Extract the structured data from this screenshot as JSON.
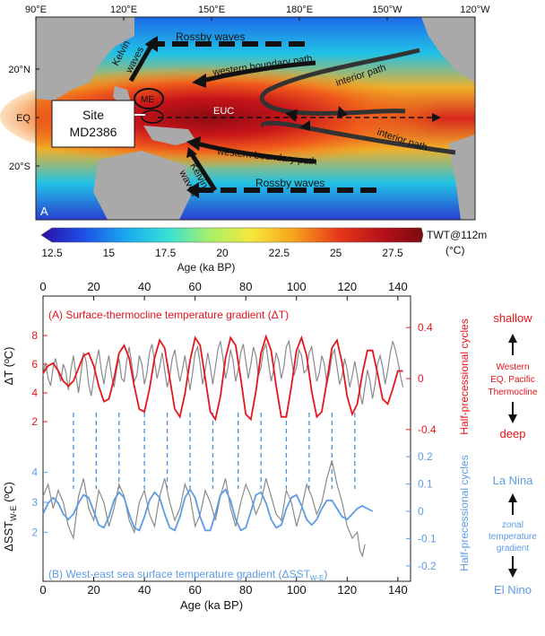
{
  "map": {
    "panel_label": "A",
    "lon_ticks": [
      "90°E",
      "120°E",
      "150°E",
      "180°E",
      "150°W",
      "120°W"
    ],
    "lat_ticks": [
      "20°N",
      "EQ",
      "20°S"
    ],
    "site_label_1": "Site",
    "site_label_2": "MD2386",
    "labels": {
      "rossby_top": "Rossby waves",
      "rossby_bottom": "Rossby waves",
      "kelvin_1": "Kelvin",
      "kelvin_2": "waves",
      "wbp_north": "western boundary path",
      "wbp_south": "western boundary path",
      "interior_north": "interior path",
      "interior_south": "interior path",
      "euc": "EUC",
      "me": "ME"
    }
  },
  "colorbar": {
    "ticks": [
      "12.5",
      "15",
      "17.5",
      "20",
      "22.5",
      "25",
      "27.5"
    ],
    "label": "TWT@112m",
    "unit": "(°C)",
    "colors": [
      "#2b0fa8",
      "#1e4fe6",
      "#19a7f0",
      "#35e0d8",
      "#a6f06a",
      "#f5e83a",
      "#f7a41d",
      "#e8361a",
      "#b21017",
      "#7a0b10"
    ]
  },
  "text": {
    "title_a": "(A) Surface-thermocline temperature gradient (ΔT)",
    "title_b": "(B) West-east sea surface temperature gradient (ΔSST",
    "title_b_sub": "W-E",
    "title_b_end": ")",
    "y_label_a": "ΔT (ºC)",
    "y_label_b_main": "ΔSST",
    "y_label_b_sub": "W-E",
    "y_label_b_unit": " (ºC)",
    "right_label_a": "Half-precessional cycles",
    "right_label_b": "Half-precessional cycles",
    "top_axis_title": "Age (ka BP)",
    "bottom_axis_title": "Age (ka BP)",
    "side": {
      "shallow": "shallow",
      "western_1": "Western",
      "western_2": "EQ. Pacific",
      "western_3": "Thermocline",
      "deep": "deep",
      "lanina": "La Nina",
      "zonal_1": "zonal",
      "zonal_2": "temperature",
      "zonal_3": "gradient",
      "elnino": "El Nino"
    }
  },
  "chart_data": {
    "type": "line",
    "x_ticks": [
      0,
      20,
      40,
      60,
      80,
      100,
      120,
      140
    ],
    "xlim": [
      0,
      145
    ],
    "colors": {
      "delta_t_cycle": "#e8141c",
      "delta_sst_cycle": "#5b9be8",
      "record": "#8a8a8a",
      "guide": "#4a8ee0"
    },
    "guide_lines_ka": [
      12,
      21,
      30,
      40,
      49,
      58,
      67,
      77,
      86,
      96,
      105,
      114,
      123
    ],
    "panel_a": {
      "left_axis": {
        "ticks": [
          2,
          4,
          6,
          8
        ],
        "ylim": [
          1,
          9
        ]
      },
      "right_axis": {
        "ticks": [
          -0.4,
          0,
          0.4
        ],
        "ylim": [
          -0.45,
          0.45
        ]
      },
      "half_precessional_cycle": {
        "x": [
          0,
          2,
          4,
          6,
          8,
          10,
          12,
          14,
          16,
          18,
          20,
          22,
          24,
          26,
          28,
          30,
          32,
          34,
          36,
          38,
          40,
          42,
          44,
          46,
          48,
          50,
          52,
          54,
          56,
          58,
          60,
          62,
          64,
          66,
          68,
          70,
          72,
          74,
          76,
          78,
          80,
          82,
          84,
          86,
          88,
          90,
          92,
          94,
          96,
          98,
          100,
          102,
          104,
          106,
          108,
          110,
          112,
          114,
          116,
          118,
          120,
          122,
          124,
          126,
          128,
          130,
          132,
          134,
          136,
          138,
          140,
          142
        ],
        "y": [
          0.04,
          0.1,
          0.12,
          0.06,
          -0.02,
          -0.06,
          -0.02,
          0.08,
          0.18,
          0.2,
          0.1,
          -0.06,
          -0.18,
          -0.16,
          0.0,
          0.2,
          0.26,
          0.16,
          -0.06,
          -0.24,
          -0.26,
          -0.08,
          0.16,
          0.3,
          0.24,
          0.0,
          -0.24,
          -0.3,
          -0.12,
          0.14,
          0.32,
          0.26,
          0.0,
          -0.26,
          -0.32,
          -0.14,
          0.16,
          0.32,
          0.26,
          0.0,
          -0.28,
          -0.32,
          -0.1,
          0.2,
          0.33,
          0.22,
          -0.06,
          -0.3,
          -0.3,
          -0.06,
          0.22,
          0.32,
          0.18,
          -0.1,
          -0.3,
          -0.26,
          -0.02,
          0.24,
          0.3,
          0.12,
          -0.14,
          -0.28,
          -0.2,
          0.04,
          0.22,
          0.22,
          0.04,
          -0.16,
          -0.2,
          -0.08,
          0.06,
          0.06
        ]
      },
      "record": {
        "x": [
          0,
          1,
          2,
          3,
          4,
          5,
          6,
          7,
          8,
          9,
          10,
          11,
          12,
          13,
          14,
          15,
          16,
          17,
          18,
          19,
          20,
          21,
          22,
          23,
          24,
          25,
          26,
          27,
          28,
          29,
          30,
          31,
          32,
          33,
          34,
          35,
          36,
          37,
          38,
          39,
          40,
          41,
          42,
          43,
          44,
          45,
          46,
          47,
          48,
          49,
          50,
          51,
          52,
          53,
          54,
          55,
          56,
          57,
          58,
          59,
          60,
          61,
          62,
          63,
          64,
          65,
          66,
          67,
          68,
          69,
          70,
          71,
          72,
          73,
          74,
          75,
          76,
          77,
          78,
          79,
          80,
          81,
          82,
          83,
          84,
          85,
          86,
          87,
          88,
          89,
          90,
          91,
          92,
          93,
          94,
          95,
          96,
          97,
          98,
          99,
          100,
          101,
          102,
          103,
          104,
          105,
          106,
          107,
          108,
          109,
          110,
          111,
          112,
          113,
          114,
          115,
          116,
          117,
          118,
          119,
          120,
          121,
          122,
          123,
          124,
          125,
          126,
          127,
          128,
          129,
          130,
          131,
          132,
          133,
          134,
          135,
          136,
          137,
          138,
          139,
          140,
          141,
          142
        ],
        "y": [
          5.2,
          6.1,
          5.0,
          4.5,
          5.8,
          6.4,
          5.4,
          4.8,
          6.0,
          5.5,
          4.2,
          5.6,
          6.6,
          5.2,
          4.0,
          5.4,
          6.8,
          6.2,
          4.6,
          3.8,
          5.0,
          6.2,
          7.0,
          5.6,
          4.6,
          5.8,
          6.6,
          5.2,
          4.4,
          5.6,
          6.4,
          5.0,
          4.8,
          6.2,
          7.2,
          6.0,
          4.8,
          5.2,
          6.6,
          6.0,
          4.6,
          5.4,
          6.8,
          7.4,
          6.2,
          5.0,
          5.8,
          6.8,
          5.6,
          4.4,
          5.2,
          6.4,
          7.0,
          5.8,
          4.8,
          5.6,
          6.6,
          5.4,
          4.2,
          5.4,
          6.8,
          7.2,
          6.0,
          4.6,
          5.6,
          6.8,
          5.8,
          4.6,
          5.8,
          7.0,
          7.6,
          6.4,
          5.0,
          5.8,
          7.0,
          6.2,
          4.8,
          5.6,
          6.8,
          7.4,
          6.2,
          5.0,
          6.0,
          7.2,
          6.6,
          5.2,
          5.8,
          7.0,
          7.4,
          6.0,
          4.8,
          5.6,
          6.8,
          6.2,
          5.0,
          5.8,
          7.2,
          7.6,
          6.4,
          5.2,
          5.8,
          7.0,
          6.6,
          5.4,
          5.6,
          6.8,
          7.2,
          6.0,
          4.8,
          5.4,
          6.6,
          6.0,
          4.6,
          5.4,
          6.6,
          7.0,
          5.8,
          4.6,
          5.2,
          6.4,
          5.6,
          4.4,
          5.2,
          6.2,
          5.2,
          4.0,
          3.2,
          4.4,
          5.6,
          4.8,
          3.6,
          4.6,
          6.0,
          6.6,
          5.8,
          4.6,
          5.6,
          6.8,
          7.6,
          7.0,
          6.2,
          5.2,
          4.4
        ]
      }
    },
    "panel_b": {
      "left_axis": {
        "ticks": [
          2,
          3,
          4
        ],
        "ylim": [
          0.6,
          4.8
        ]
      },
      "right_axis": {
        "ticks": [
          -0.2,
          -0.1,
          0,
          0.1,
          0.2
        ],
        "ylim": [
          -0.23,
          0.23
        ]
      },
      "half_precessional_cycle": {
        "x": [
          0,
          2,
          4,
          6,
          8,
          10,
          12,
          14,
          16,
          18,
          20,
          22,
          24,
          26,
          28,
          30,
          32,
          34,
          36,
          38,
          40,
          42,
          44,
          46,
          48,
          50,
          52,
          54,
          56,
          58,
          60,
          62,
          64,
          66,
          68,
          70,
          72,
          74,
          76,
          78,
          80,
          82,
          84,
          86,
          88,
          90,
          92,
          94,
          96,
          98,
          100,
          102,
          104,
          106,
          108,
          110,
          112,
          114,
          116,
          118,
          120,
          122,
          124,
          126,
          128,
          130
        ],
        "y": [
          -0.01,
          0.03,
          0.05,
          0.03,
          -0.01,
          -0.03,
          -0.01,
          0.03,
          0.06,
          0.05,
          0.0,
          -0.05,
          -0.06,
          -0.02,
          0.04,
          0.07,
          0.05,
          -0.01,
          -0.06,
          -0.07,
          -0.02,
          0.04,
          0.07,
          0.05,
          -0.01,
          -0.06,
          -0.07,
          -0.02,
          0.05,
          0.08,
          0.05,
          -0.02,
          -0.07,
          -0.07,
          -0.01,
          0.06,
          0.08,
          0.04,
          -0.03,
          -0.07,
          -0.06,
          0.0,
          0.06,
          0.07,
          0.03,
          -0.03,
          -0.06,
          -0.05,
          0.01,
          0.05,
          0.06,
          0.02,
          -0.03,
          -0.05,
          -0.03,
          0.01,
          0.04,
          0.04,
          0.01,
          -0.02,
          -0.03,
          -0.01,
          0.01,
          0.02,
          0.01,
          0.0
        ]
      },
      "record": {
        "x": [
          0,
          2,
          4,
          6,
          8,
          10,
          12,
          14,
          16,
          18,
          20,
          22,
          24,
          26,
          28,
          30,
          32,
          34,
          36,
          38,
          40,
          42,
          44,
          46,
          48,
          50,
          52,
          54,
          56,
          58,
          60,
          62,
          64,
          66,
          68,
          70,
          72,
          74,
          76,
          78,
          80,
          82,
          84,
          86,
          88,
          90,
          92,
          94,
          96,
          98,
          100,
          102,
          104,
          106,
          108,
          110,
          112,
          114,
          116,
          118,
          120,
          122,
          124,
          125,
          126,
          127
        ],
        "y": [
          3.2,
          3.6,
          2.8,
          3.4,
          3.0,
          2.2,
          1.8,
          3.2,
          3.8,
          2.8,
          2.4,
          3.4,
          3.0,
          2.2,
          2.8,
          3.6,
          3.2,
          2.4,
          2.0,
          3.0,
          3.4,
          2.6,
          2.2,
          3.2,
          3.8,
          3.0,
          2.4,
          2.8,
          3.6,
          3.2,
          2.2,
          2.6,
          3.4,
          3.0,
          2.4,
          3.2,
          3.8,
          2.8,
          2.2,
          3.0,
          3.6,
          3.2,
          2.6,
          3.0,
          3.8,
          3.2,
          2.6,
          2.4,
          3.4,
          3.0,
          2.2,
          2.8,
          3.6,
          3.2,
          2.6,
          3.0,
          3.8,
          4.4,
          3.6,
          3.0,
          2.2,
          1.8,
          2.0,
          1.4,
          1.2,
          1.6
        ]
      }
    }
  }
}
